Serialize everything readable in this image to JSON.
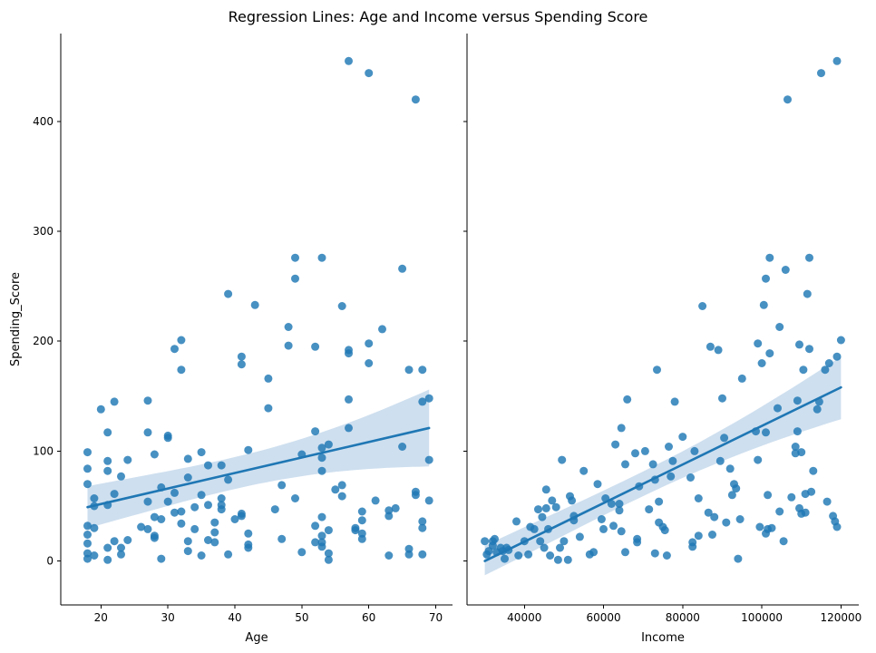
{
  "figure": {
    "title": "Regression Lines: Age and Income versus Spending Score"
  },
  "colors": {
    "points": "#1f77b4",
    "regression_line": "#1f77b4",
    "confidence_band": "#c6d9ec"
  },
  "chart_data": [
    {
      "type": "scatter",
      "subtype": "regression",
      "title": "",
      "xlabel": "Age",
      "ylabel": "Spending_Score",
      "xlim": [
        14,
        72.5
      ],
      "ylim": [
        -40,
        480
      ],
      "xticks": [
        20,
        30,
        40,
        50,
        60,
        70
      ],
      "yticks": [
        0,
        100,
        200,
        300,
        400
      ],
      "points": [
        [
          18,
          2
        ],
        [
          18,
          7
        ],
        [
          18,
          16
        ],
        [
          18,
          24
        ],
        [
          18,
          32
        ],
        [
          18,
          70
        ],
        [
          18,
          84
        ],
        [
          18,
          99
        ],
        [
          19,
          5
        ],
        [
          19,
          30
        ],
        [
          19,
          50
        ],
        [
          19,
          57
        ],
        [
          20,
          138
        ],
        [
          21,
          1
        ],
        [
          21,
          12
        ],
        [
          21,
          51
        ],
        [
          21,
          82
        ],
        [
          21,
          91
        ],
        [
          21,
          117
        ],
        [
          22,
          18
        ],
        [
          22,
          61
        ],
        [
          22,
          145
        ],
        [
          23,
          6
        ],
        [
          23,
          12
        ],
        [
          23,
          77
        ],
        [
          24,
          19
        ],
        [
          24,
          92
        ],
        [
          26,
          31
        ],
        [
          27,
          29
        ],
        [
          27,
          54
        ],
        [
          27,
          117
        ],
        [
          27,
          146
        ],
        [
          28,
          21
        ],
        [
          28,
          23
        ],
        [
          28,
          40
        ],
        [
          28,
          97
        ],
        [
          29,
          2
        ],
        [
          29,
          38
        ],
        [
          29,
          67
        ],
        [
          30,
          54
        ],
        [
          30,
          112
        ],
        [
          30,
          114
        ],
        [
          31,
          44
        ],
        [
          31,
          62
        ],
        [
          31,
          193
        ],
        [
          32,
          34
        ],
        [
          32,
          45
        ],
        [
          32,
          174
        ],
        [
          32,
          201
        ],
        [
          33,
          9
        ],
        [
          33,
          18
        ],
        [
          33,
          76
        ],
        [
          33,
          93
        ],
        [
          34,
          29
        ],
        [
          34,
          49
        ],
        [
          35,
          5
        ],
        [
          35,
          60
        ],
        [
          35,
          99
        ],
        [
          36,
          19
        ],
        [
          36,
          51
        ],
        [
          36,
          87
        ],
        [
          37,
          17
        ],
        [
          37,
          26
        ],
        [
          37,
          35
        ],
        [
          38,
          47
        ],
        [
          38,
          51
        ],
        [
          38,
          57
        ],
        [
          38,
          87
        ],
        [
          39,
          6
        ],
        [
          39,
          74
        ],
        [
          39,
          243
        ],
        [
          40,
          38
        ],
        [
          41,
          41
        ],
        [
          41,
          43
        ],
        [
          41,
          179
        ],
        [
          41,
          186
        ],
        [
          42,
          12
        ],
        [
          42,
          15
        ],
        [
          42,
          25
        ],
        [
          42,
          101
        ],
        [
          43,
          233
        ],
        [
          45,
          139
        ],
        [
          45,
          166
        ],
        [
          46,
          47
        ],
        [
          47,
          20
        ],
        [
          47,
          69
        ],
        [
          48,
          196
        ],
        [
          48,
          213
        ],
        [
          49,
          57
        ],
        [
          49,
          257
        ],
        [
          49,
          276
        ],
        [
          50,
          8
        ],
        [
          50,
          97
        ],
        [
          52,
          17
        ],
        [
          52,
          32
        ],
        [
          52,
          118
        ],
        [
          52,
          195
        ],
        [
          53,
          13
        ],
        [
          53,
          17
        ],
        [
          53,
          23
        ],
        [
          53,
          40
        ],
        [
          53,
          82
        ],
        [
          53,
          94
        ],
        [
          53,
          103
        ],
        [
          53,
          276
        ],
        [
          54,
          1
        ],
        [
          54,
          7
        ],
        [
          54,
          28
        ],
        [
          54,
          106
        ],
        [
          55,
          65
        ],
        [
          56,
          59
        ],
        [
          56,
          69
        ],
        [
          56,
          232
        ],
        [
          57,
          121
        ],
        [
          57,
          147
        ],
        [
          57,
          189
        ],
        [
          57,
          192
        ],
        [
          57,
          455
        ],
        [
          58,
          28
        ],
        [
          58,
          30
        ],
        [
          59,
          20
        ],
        [
          59,
          25
        ],
        [
          59,
          37
        ],
        [
          59,
          45
        ],
        [
          60,
          180
        ],
        [
          60,
          198
        ],
        [
          60,
          444
        ],
        [
          61,
          55
        ],
        [
          62,
          211
        ],
        [
          63,
          5
        ],
        [
          63,
          41
        ],
        [
          63,
          46
        ],
        [
          64,
          48
        ],
        [
          65,
          104
        ],
        [
          65,
          266
        ],
        [
          66,
          6
        ],
        [
          66,
          11
        ],
        [
          66,
          174
        ],
        [
          67,
          60
        ],
        [
          67,
          63
        ],
        [
          67,
          420
        ],
        [
          68,
          6
        ],
        [
          68,
          30
        ],
        [
          68,
          36
        ],
        [
          68,
          145
        ],
        [
          68,
          174
        ],
        [
          69,
          55
        ],
        [
          69,
          92
        ],
        [
          69,
          148
        ]
      ],
      "regression": {
        "x": [
          18,
          69
        ],
        "y": [
          49,
          121
        ],
        "ci_lower": [
          30,
          86
        ],
        "ci_upper": [
          68,
          156
        ]
      }
    },
    {
      "type": "scatter",
      "subtype": "regression",
      "title": "",
      "xlabel": "Income",
      "ylabel": "",
      "xlim": [
        25500,
        124500
      ],
      "ylim": [
        -40,
        480
      ],
      "xticks": [
        40000,
        60000,
        80000,
        100000,
        120000
      ],
      "yticks": [
        0,
        100,
        200,
        300,
        400
      ],
      "points": [
        [
          30000,
          18
        ],
        [
          30500,
          6
        ],
        [
          31000,
          9
        ],
        [
          32000,
          14
        ],
        [
          32000,
          18
        ],
        [
          32500,
          20
        ],
        [
          33000,
          8
        ],
        [
          34000,
          12
        ],
        [
          34500,
          9
        ],
        [
          35000,
          2
        ],
        [
          35500,
          12
        ],
        [
          36000,
          10
        ],
        [
          38000,
          36
        ],
        [
          38500,
          5
        ],
        [
          40000,
          18
        ],
        [
          41000,
          6
        ],
        [
          41500,
          31
        ],
        [
          42500,
          29
        ],
        [
          43500,
          47
        ],
        [
          44000,
          18
        ],
        [
          44500,
          40
        ],
        [
          45000,
          12
        ],
        [
          45500,
          48
        ],
        [
          45500,
          65
        ],
        [
          46000,
          29
        ],
        [
          46500,
          5
        ],
        [
          47000,
          55
        ],
        [
          48000,
          49
        ],
        [
          48500,
          1
        ],
        [
          49000,
          12
        ],
        [
          49500,
          92
        ],
        [
          50000,
          18
        ],
        [
          51000,
          1
        ],
        [
          51500,
          59
        ],
        [
          52000,
          55
        ],
        [
          52500,
          37
        ],
        [
          52500,
          41
        ],
        [
          54000,
          22
        ],
        [
          55000,
          82
        ],
        [
          56500,
          6
        ],
        [
          57500,
          8
        ],
        [
          58500,
          70
        ],
        [
          59500,
          38
        ],
        [
          60000,
          29
        ],
        [
          60500,
          57
        ],
        [
          62000,
          52
        ],
        [
          62500,
          32
        ],
        [
          63000,
          106
        ],
        [
          64000,
          52
        ],
        [
          64000,
          46
        ],
        [
          64500,
          121
        ],
        [
          64500,
          27
        ],
        [
          65500,
          8
        ],
        [
          65500,
          88
        ],
        [
          66000,
          147
        ],
        [
          68000,
          98
        ],
        [
          68500,
          20
        ],
        [
          68500,
          17
        ],
        [
          69000,
          68
        ],
        [
          70500,
          100
        ],
        [
          71500,
          47
        ],
        [
          72500,
          88
        ],
        [
          73000,
          74
        ],
        [
          73000,
          7
        ],
        [
          73500,
          174
        ],
        [
          74000,
          35
        ],
        [
          74000,
          54
        ],
        [
          75000,
          31
        ],
        [
          75500,
          28
        ],
        [
          76000,
          5
        ],
        [
          76500,
          104
        ],
        [
          77000,
          77
        ],
        [
          77500,
          91
        ],
        [
          78000,
          145
        ],
        [
          80000,
          113
        ],
        [
          82000,
          76
        ],
        [
          82500,
          17
        ],
        [
          82500,
          13
        ],
        [
          83000,
          100
        ],
        [
          84000,
          57
        ],
        [
          84000,
          23
        ],
        [
          85000,
          232
        ],
        [
          86500,
          44
        ],
        [
          87000,
          195
        ],
        [
          87500,
          24
        ],
        [
          88000,
          40
        ],
        [
          89000,
          192
        ],
        [
          89500,
          91
        ],
        [
          90000,
          148
        ],
        [
          90500,
          112
        ],
        [
          91000,
          35
        ],
        [
          92000,
          84
        ],
        [
          92500,
          60
        ],
        [
          93000,
          70
        ],
        [
          93500,
          66
        ],
        [
          94000,
          2
        ],
        [
          94500,
          38
        ],
        [
          95000,
          166
        ],
        [
          98500,
          118
        ],
        [
          99000,
          198
        ],
        [
          99000,
          92
        ],
        [
          99500,
          31
        ],
        [
          100000,
          180
        ],
        [
          100500,
          233
        ],
        [
          101000,
          257
        ],
        [
          101000,
          117
        ],
        [
          101000,
          25
        ],
        [
          101500,
          29
        ],
        [
          101500,
          60
        ],
        [
          102000,
          276
        ],
        [
          102000,
          189
        ],
        [
          102500,
          30
        ],
        [
          104000,
          139
        ],
        [
          104500,
          213
        ],
        [
          104500,
          45
        ],
        [
          105500,
          18
        ],
        [
          106000,
          265
        ],
        [
          106500,
          420
        ],
        [
          107500,
          58
        ],
        [
          108500,
          98
        ],
        [
          108500,
          104
        ],
        [
          109000,
          118
        ],
        [
          109000,
          146
        ],
        [
          109500,
          197
        ],
        [
          109500,
          48
        ],
        [
          110000,
          43
        ],
        [
          110000,
          99
        ],
        [
          110500,
          174
        ],
        [
          111000,
          44
        ],
        [
          111000,
          61
        ],
        [
          111500,
          243
        ],
        [
          112000,
          276
        ],
        [
          112000,
          193
        ],
        [
          112500,
          63
        ],
        [
          113000,
          82
        ],
        [
          114000,
          138
        ],
        [
          114500,
          145
        ],
        [
          115000,
          444
        ],
        [
          116000,
          174
        ],
        [
          116500,
          54
        ],
        [
          117000,
          180
        ],
        [
          118000,
          41
        ],
        [
          118500,
          36
        ],
        [
          119000,
          455
        ],
        [
          119000,
          186
        ],
        [
          119000,
          31
        ],
        [
          120000,
          201
        ]
      ],
      "regression": {
        "x": [
          30000,
          120000
        ],
        "y": [
          0,
          158
        ],
        "ci_lower": [
          -13,
          129
        ],
        "ci_upper": [
          14,
          186
        ]
      }
    }
  ]
}
